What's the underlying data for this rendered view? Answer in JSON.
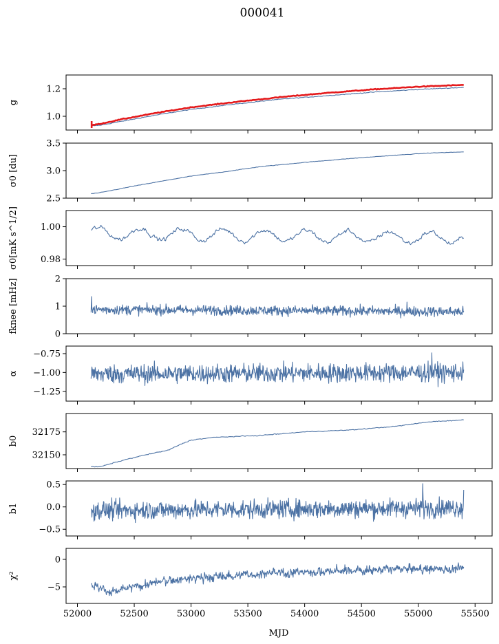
{
  "figure": {
    "title": "000041",
    "xlabel": "MJD",
    "colors": {
      "series": "#4c72a4",
      "fit": "#e41a1c"
    }
  },
  "chart_data": [
    {
      "type": "line",
      "ylabel": "g",
      "xlim": [
        51900,
        55650
      ],
      "ylim": [
        0.9,
        1.3
      ],
      "yticks": [
        {
          "v": 1.0,
          "label": "1.0"
        },
        {
          "v": 1.2,
          "label": "1.2"
        }
      ],
      "x_ticklabels": false,
      "series": [
        {
          "style": "main",
          "kind": "smooth",
          "x": [
            52120,
            52200,
            52400,
            52700,
            53000,
            53400,
            53800,
            54200,
            54600,
            55000,
            55400
          ],
          "y": [
            0.93,
            0.935,
            0.965,
            1.01,
            1.05,
            1.09,
            1.125,
            1.15,
            1.175,
            1.195,
            1.21
          ],
          "noise": 0.002
        },
        {
          "style": "fit",
          "kind": "smooth",
          "x": [
            52120,
            52200,
            52400,
            52700,
            53000,
            53400,
            53800,
            54200,
            54600,
            55000,
            55400
          ],
          "y": [
            0.935,
            0.945,
            0.98,
            1.025,
            1.065,
            1.105,
            1.14,
            1.17,
            1.195,
            1.215,
            1.228
          ],
          "noise": 0.002,
          "spike": {
            "x": 52125,
            "y0": 0.915,
            "y1": 0.965
          }
        }
      ]
    },
    {
      "type": "line",
      "ylabel": "σ0 [du]",
      "xlim": [
        51900,
        55650
      ],
      "ylim": [
        2.5,
        3.5
      ],
      "yticks": [
        {
          "v": 2.5,
          "label": "2.5"
        },
        {
          "v": 3.0,
          "label": "3.0"
        },
        {
          "v": 3.5,
          "label": "3.5"
        }
      ],
      "x_ticklabels": false,
      "series": [
        {
          "style": "main",
          "kind": "smooth",
          "x": [
            52120,
            52200,
            52500,
            52800,
            53000,
            53300,
            53600,
            54000,
            54400,
            54800,
            55100,
            55400
          ],
          "y": [
            2.58,
            2.6,
            2.72,
            2.83,
            2.9,
            2.98,
            3.07,
            3.15,
            3.22,
            3.28,
            3.32,
            3.34
          ],
          "noise": 0.003
        }
      ]
    },
    {
      "type": "line",
      "ylabel": "σ0[mK s^1/2]",
      "xlim": [
        51900,
        55650
      ],
      "ylim": [
        0.976,
        1.01
      ],
      "yticks": [
        {
          "v": 0.98,
          "label": "0.98"
        },
        {
          "v": 1.0,
          "label": "1.00"
        }
      ],
      "x_ticklabels": false,
      "series": [
        {
          "style": "main",
          "kind": "wave",
          "x0": 52120,
          "x1": 55400,
          "n": 420,
          "base0": 0.996,
          "base1": 0.993,
          "amp": 0.0035,
          "period": 365,
          "noise": 0.0018
        }
      ]
    },
    {
      "type": "line",
      "ylabel": "fknee [mHz]",
      "xlim": [
        51900,
        55650
      ],
      "ylim": [
        0,
        2
      ],
      "yticks": [
        {
          "v": 0,
          "label": "0"
        },
        {
          "v": 1,
          "label": "1"
        },
        {
          "v": 2,
          "label": "2"
        }
      ],
      "x_ticklabels": false,
      "series": [
        {
          "style": "main",
          "kind": "noise",
          "x0": 52120,
          "x1": 55400,
          "n": 900,
          "base0": 0.88,
          "base1": 0.8,
          "noise": 0.13,
          "spikes": [
            {
              "x": 52125,
              "y": 1.35
            },
            {
              "x": 54900,
              "y": 1.15
            }
          ]
        }
      ]
    },
    {
      "type": "line",
      "ylabel": "α",
      "xlim": [
        51900,
        55650
      ],
      "ylim": [
        -1.38,
        -0.65
      ],
      "yticks": [
        {
          "v": -1.25,
          "label": "−1.25"
        },
        {
          "v": -1.0,
          "label": "−1.00"
        },
        {
          "v": -0.75,
          "label": "−0.75"
        }
      ],
      "x_ticklabels": false,
      "series": [
        {
          "style": "main",
          "kind": "noise",
          "x0": 52120,
          "x1": 55400,
          "n": 900,
          "base0": -1.02,
          "base1": -1.0,
          "noise": 0.09,
          "spikes": [
            {
              "x": 55120,
              "y": -0.74
            }
          ]
        }
      ]
    },
    {
      "type": "line",
      "ylabel": "b0",
      "xlim": [
        51900,
        55650
      ],
      "ylim": [
        32135,
        32195
      ],
      "yticks": [
        {
          "v": 32150,
          "label": "32150"
        },
        {
          "v": 32175,
          "label": "32175"
        }
      ],
      "x_ticklabels": false,
      "series": [
        {
          "style": "main",
          "kind": "smooth",
          "x": [
            52120,
            52200,
            52400,
            52600,
            52800,
            52900,
            53000,
            53200,
            53600,
            54000,
            54400,
            54800,
            55100,
            55400
          ],
          "y": [
            32137,
            32137,
            32144,
            32150,
            32155,
            32161,
            32166,
            32169,
            32171,
            32175,
            32177,
            32181,
            32186,
            32188
          ],
          "noise": 0.3
        }
      ]
    },
    {
      "type": "line",
      "ylabel": "b1",
      "xlim": [
        51900,
        55650
      ],
      "ylim": [
        -0.65,
        0.58
      ],
      "yticks": [
        {
          "v": -0.5,
          "label": "−0.5"
        },
        {
          "v": 0.0,
          "label": "0.0"
        },
        {
          "v": 0.5,
          "label": "0.5"
        }
      ],
      "x_ticklabels": false,
      "series": [
        {
          "style": "main",
          "kind": "noise",
          "x0": 52120,
          "x1": 55400,
          "n": 900,
          "base0": -0.08,
          "base1": -0.02,
          "noise": 0.15,
          "spikes": [
            {
              "x": 55040,
              "y": 0.52
            },
            {
              "x": 55400,
              "y": 0.38
            }
          ]
        }
      ]
    },
    {
      "type": "line",
      "ylabel": "χ²",
      "xlim": [
        51900,
        55650
      ],
      "ylim": [
        -8,
        2
      ],
      "yticks": [
        {
          "v": -5,
          "label": "−5"
        },
        {
          "v": 0,
          "label": "0"
        }
      ],
      "x_ticklabels": true,
      "xticks": [
        {
          "v": 52000,
          "label": "52000"
        },
        {
          "v": 52500,
          "label": "52500"
        },
        {
          "v": 53000,
          "label": "53000"
        },
        {
          "v": 53500,
          "label": "53500"
        },
        {
          "v": 54000,
          "label": "54000"
        },
        {
          "v": 54500,
          "label": "54500"
        },
        {
          "v": 55000,
          "label": "55000"
        },
        {
          "v": 55500,
          "label": "55500"
        }
      ],
      "series": [
        {
          "style": "main",
          "kind": "trend",
          "x": [
            52120,
            52300,
            52500,
            52800,
            53200,
            53600,
            54000,
            54400,
            54800,
            55400
          ],
          "y": [
            -4.5,
            -6.0,
            -5.0,
            -3.8,
            -3.2,
            -2.6,
            -2.3,
            -2.0,
            -1.8,
            -1.7
          ],
          "noise": 0.7
        }
      ]
    }
  ]
}
